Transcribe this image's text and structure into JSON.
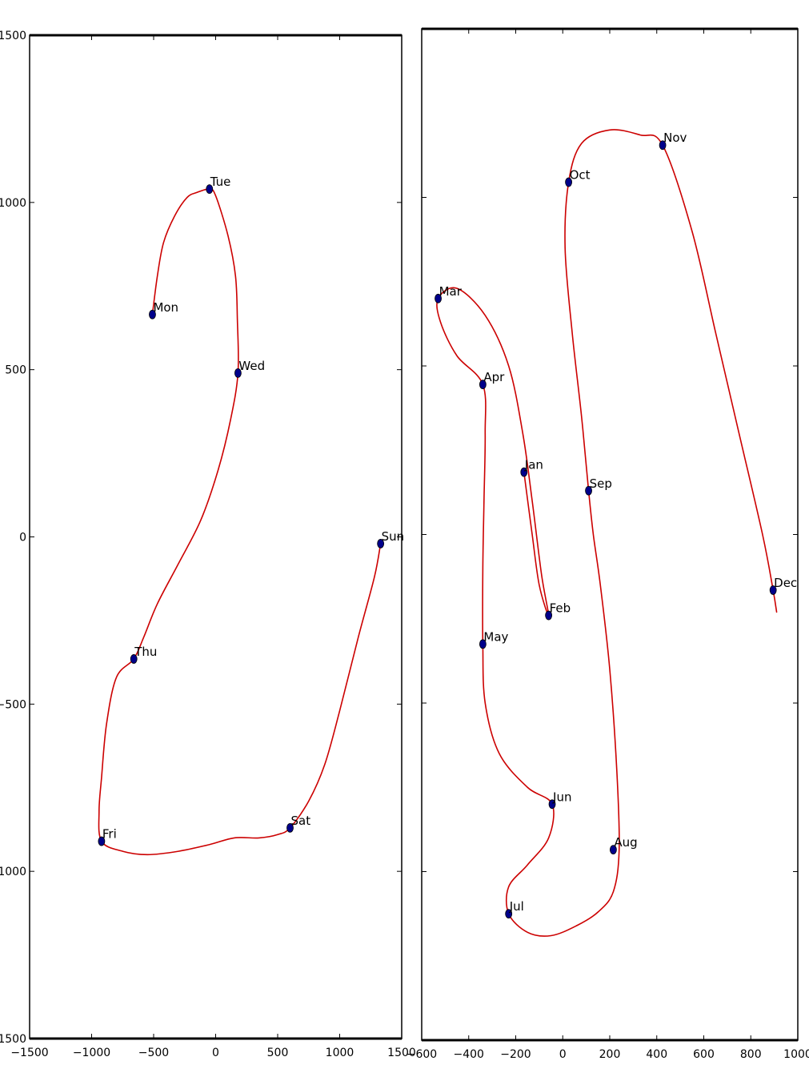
{
  "colors": {
    "curve": "#cc0000",
    "point": "#00008b",
    "axes": "#000000"
  },
  "chart_data": [
    {
      "type": "scatter",
      "title": "",
      "xlabel": "",
      "ylabel": "",
      "xlim": [
        -1500,
        1500
      ],
      "ylim": [
        -1500,
        1500
      ],
      "x_ticks": [
        -1500,
        -1000,
        -500,
        0,
        500,
        1000,
        1500
      ],
      "x_tick_labels": [
        "−1500",
        "−1000",
        "−500",
        "0",
        "500",
        "1000",
        "1500"
      ],
      "y_ticks": [
        1500,
        1000,
        500,
        0,
        -500,
        -1000,
        -1500
      ],
      "y_tick_labels": [
        "1500",
        "1000",
        "500",
        "0",
        "−500",
        "−1000",
        "−1500"
      ],
      "grid": false,
      "points": [
        {
          "label": "Mon",
          "x": -510,
          "y": 665
        },
        {
          "label": "Tue",
          "x": -50,
          "y": 1040
        },
        {
          "label": "Wed",
          "x": 180,
          "y": 490
        },
        {
          "label": "Thu",
          "x": -660,
          "y": -365
        },
        {
          "label": "Fri",
          "x": -920,
          "y": -910
        },
        {
          "label": "Sat",
          "x": 600,
          "y": -870
        },
        {
          "label": "Sun",
          "x": 1330,
          "y": -20
        }
      ],
      "curve": [
        [
          -510,
          665
        ],
        [
          -470,
          780
        ],
        [
          -420,
          880
        ],
        [
          -330,
          960
        ],
        [
          -230,
          1015
        ],
        [
          -150,
          1030
        ],
        [
          -50,
          1040
        ],
        [
          0,
          1020
        ],
        [
          100,
          900
        ],
        [
          160,
          780
        ],
        [
          175,
          650
        ],
        [
          180,
          490
        ],
        [
          120,
          350
        ],
        [
          20,
          200
        ],
        [
          -120,
          50
        ],
        [
          -300,
          -80
        ],
        [
          -470,
          -200
        ],
        [
          -580,
          -300
        ],
        [
          -660,
          -365
        ],
        [
          -800,
          -420
        ],
        [
          -880,
          -560
        ],
        [
          -920,
          -720
        ],
        [
          -940,
          -820
        ],
        [
          -920,
          -910
        ],
        [
          -750,
          -940
        ],
        [
          -550,
          -950
        ],
        [
          -300,
          -940
        ],
        [
          -50,
          -920
        ],
        [
          150,
          -900
        ],
        [
          350,
          -900
        ],
        [
          500,
          -890
        ],
        [
          600,
          -870
        ],
        [
          750,
          -790
        ],
        [
          880,
          -680
        ],
        [
          1000,
          -520
        ],
        [
          1150,
          -300
        ],
        [
          1280,
          -120
        ],
        [
          1330,
          -20
        ]
      ]
    },
    {
      "type": "scatter",
      "title": "",
      "xlabel": "",
      "ylabel": "",
      "xlim": [
        -600,
        1000
      ],
      "ylim": [
        -1500,
        1500
      ],
      "x_ticks": [
        -600,
        -400,
        -200,
        0,
        200,
        400,
        600,
        800,
        1000
      ],
      "x_tick_labels": [
        "−600",
        "−400",
        "−200",
        "0",
        "200",
        "400",
        "600",
        "800",
        "1000"
      ],
      "grid": false,
      "points": [
        {
          "label": "Jan",
          "x": -165,
          "y": 185
        },
        {
          "label": "Feb",
          "x": -60,
          "y": -240
        },
        {
          "label": "Mar",
          "x": -530,
          "y": 700
        },
        {
          "label": "Apr",
          "x": -340,
          "y": 445
        },
        {
          "label": "May",
          "x": -340,
          "y": -325
        },
        {
          "label": "Jun",
          "x": -45,
          "y": -800
        },
        {
          "label": "Jul",
          "x": -230,
          "y": -1125
        },
        {
          "label": "Aug",
          "x": 215,
          "y": -935
        },
        {
          "label": "Sep",
          "x": 110,
          "y": 130
        },
        {
          "label": "Oct",
          "x": 25,
          "y": 1045
        },
        {
          "label": "Nov",
          "x": 425,
          "y": 1155
        },
        {
          "label": "Dec",
          "x": 895,
          "y": -165
        }
      ],
      "curve": [
        [
          -165,
          185
        ],
        [
          -130,
          0
        ],
        [
          -100,
          -150
        ],
        [
          -60,
          -240
        ],
        [
          -90,
          -120
        ],
        [
          -130,
          100
        ],
        [
          -170,
          300
        ],
        [
          -230,
          500
        ],
        [
          -330,
          650
        ],
        [
          -450,
          730
        ],
        [
          -530,
          700
        ],
        [
          -520,
          630
        ],
        [
          -450,
          530
        ],
        [
          -340,
          445
        ],
        [
          -330,
          300
        ],
        [
          -335,
          100
        ],
        [
          -340,
          -100
        ],
        [
          -340,
          -325
        ],
        [
          -330,
          -500
        ],
        [
          -270,
          -650
        ],
        [
          -150,
          -750
        ],
        [
          -45,
          -800
        ],
        [
          -60,
          -900
        ],
        [
          -150,
          -980
        ],
        [
          -230,
          -1045
        ],
        [
          -230,
          -1125
        ],
        [
          -150,
          -1180
        ],
        [
          -50,
          -1190
        ],
        [
          60,
          -1160
        ],
        [
          150,
          -1120
        ],
        [
          215,
          -1060
        ],
        [
          240,
          -935
        ],
        [
          230,
          -700
        ],
        [
          200,
          -400
        ],
        [
          160,
          -150
        ],
        [
          130,
          0
        ],
        [
          110,
          130
        ],
        [
          80,
          350
        ],
        [
          40,
          600
        ],
        [
          10,
          850
        ],
        [
          25,
          1045
        ],
        [
          80,
          1160
        ],
        [
          200,
          1200
        ],
        [
          330,
          1185
        ],
        [
          425,
          1155
        ],
        [
          550,
          900
        ],
        [
          650,
          600
        ],
        [
          750,
          300
        ],
        [
          850,
          0
        ],
        [
          895,
          -165
        ],
        [
          910,
          -230
        ]
      ]
    }
  ]
}
